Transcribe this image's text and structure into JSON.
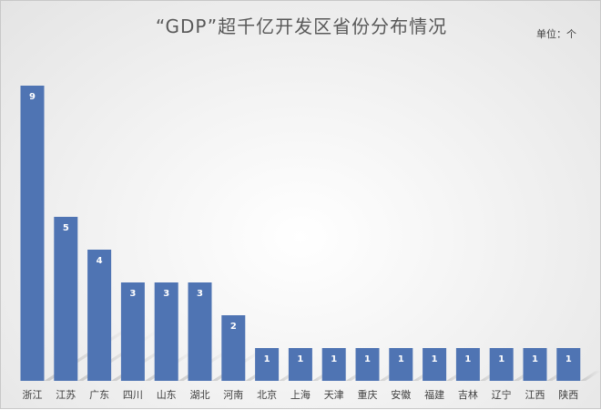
{
  "chart_data": {
    "type": "bar",
    "title": "“GDP”超千亿开发区省份分布情况",
    "unit": "单位：个",
    "categories": [
      "浙江",
      "江苏",
      "广东",
      "四川",
      "山东",
      "湖北",
      "河南",
      "北京",
      "上海",
      "天津",
      "重庆",
      "安徽",
      "福建",
      "吉林",
      "辽宁",
      "江西",
      "陕西"
    ],
    "values": [
      9,
      5,
      4,
      3,
      3,
      3,
      2,
      1,
      1,
      1,
      1,
      1,
      1,
      1,
      1,
      1,
      1
    ],
    "ylim": [
      0,
      9
    ],
    "grid": false,
    "legend": "none",
    "bar_color": "#4f74b3",
    "label_color": "#ffffff"
  }
}
